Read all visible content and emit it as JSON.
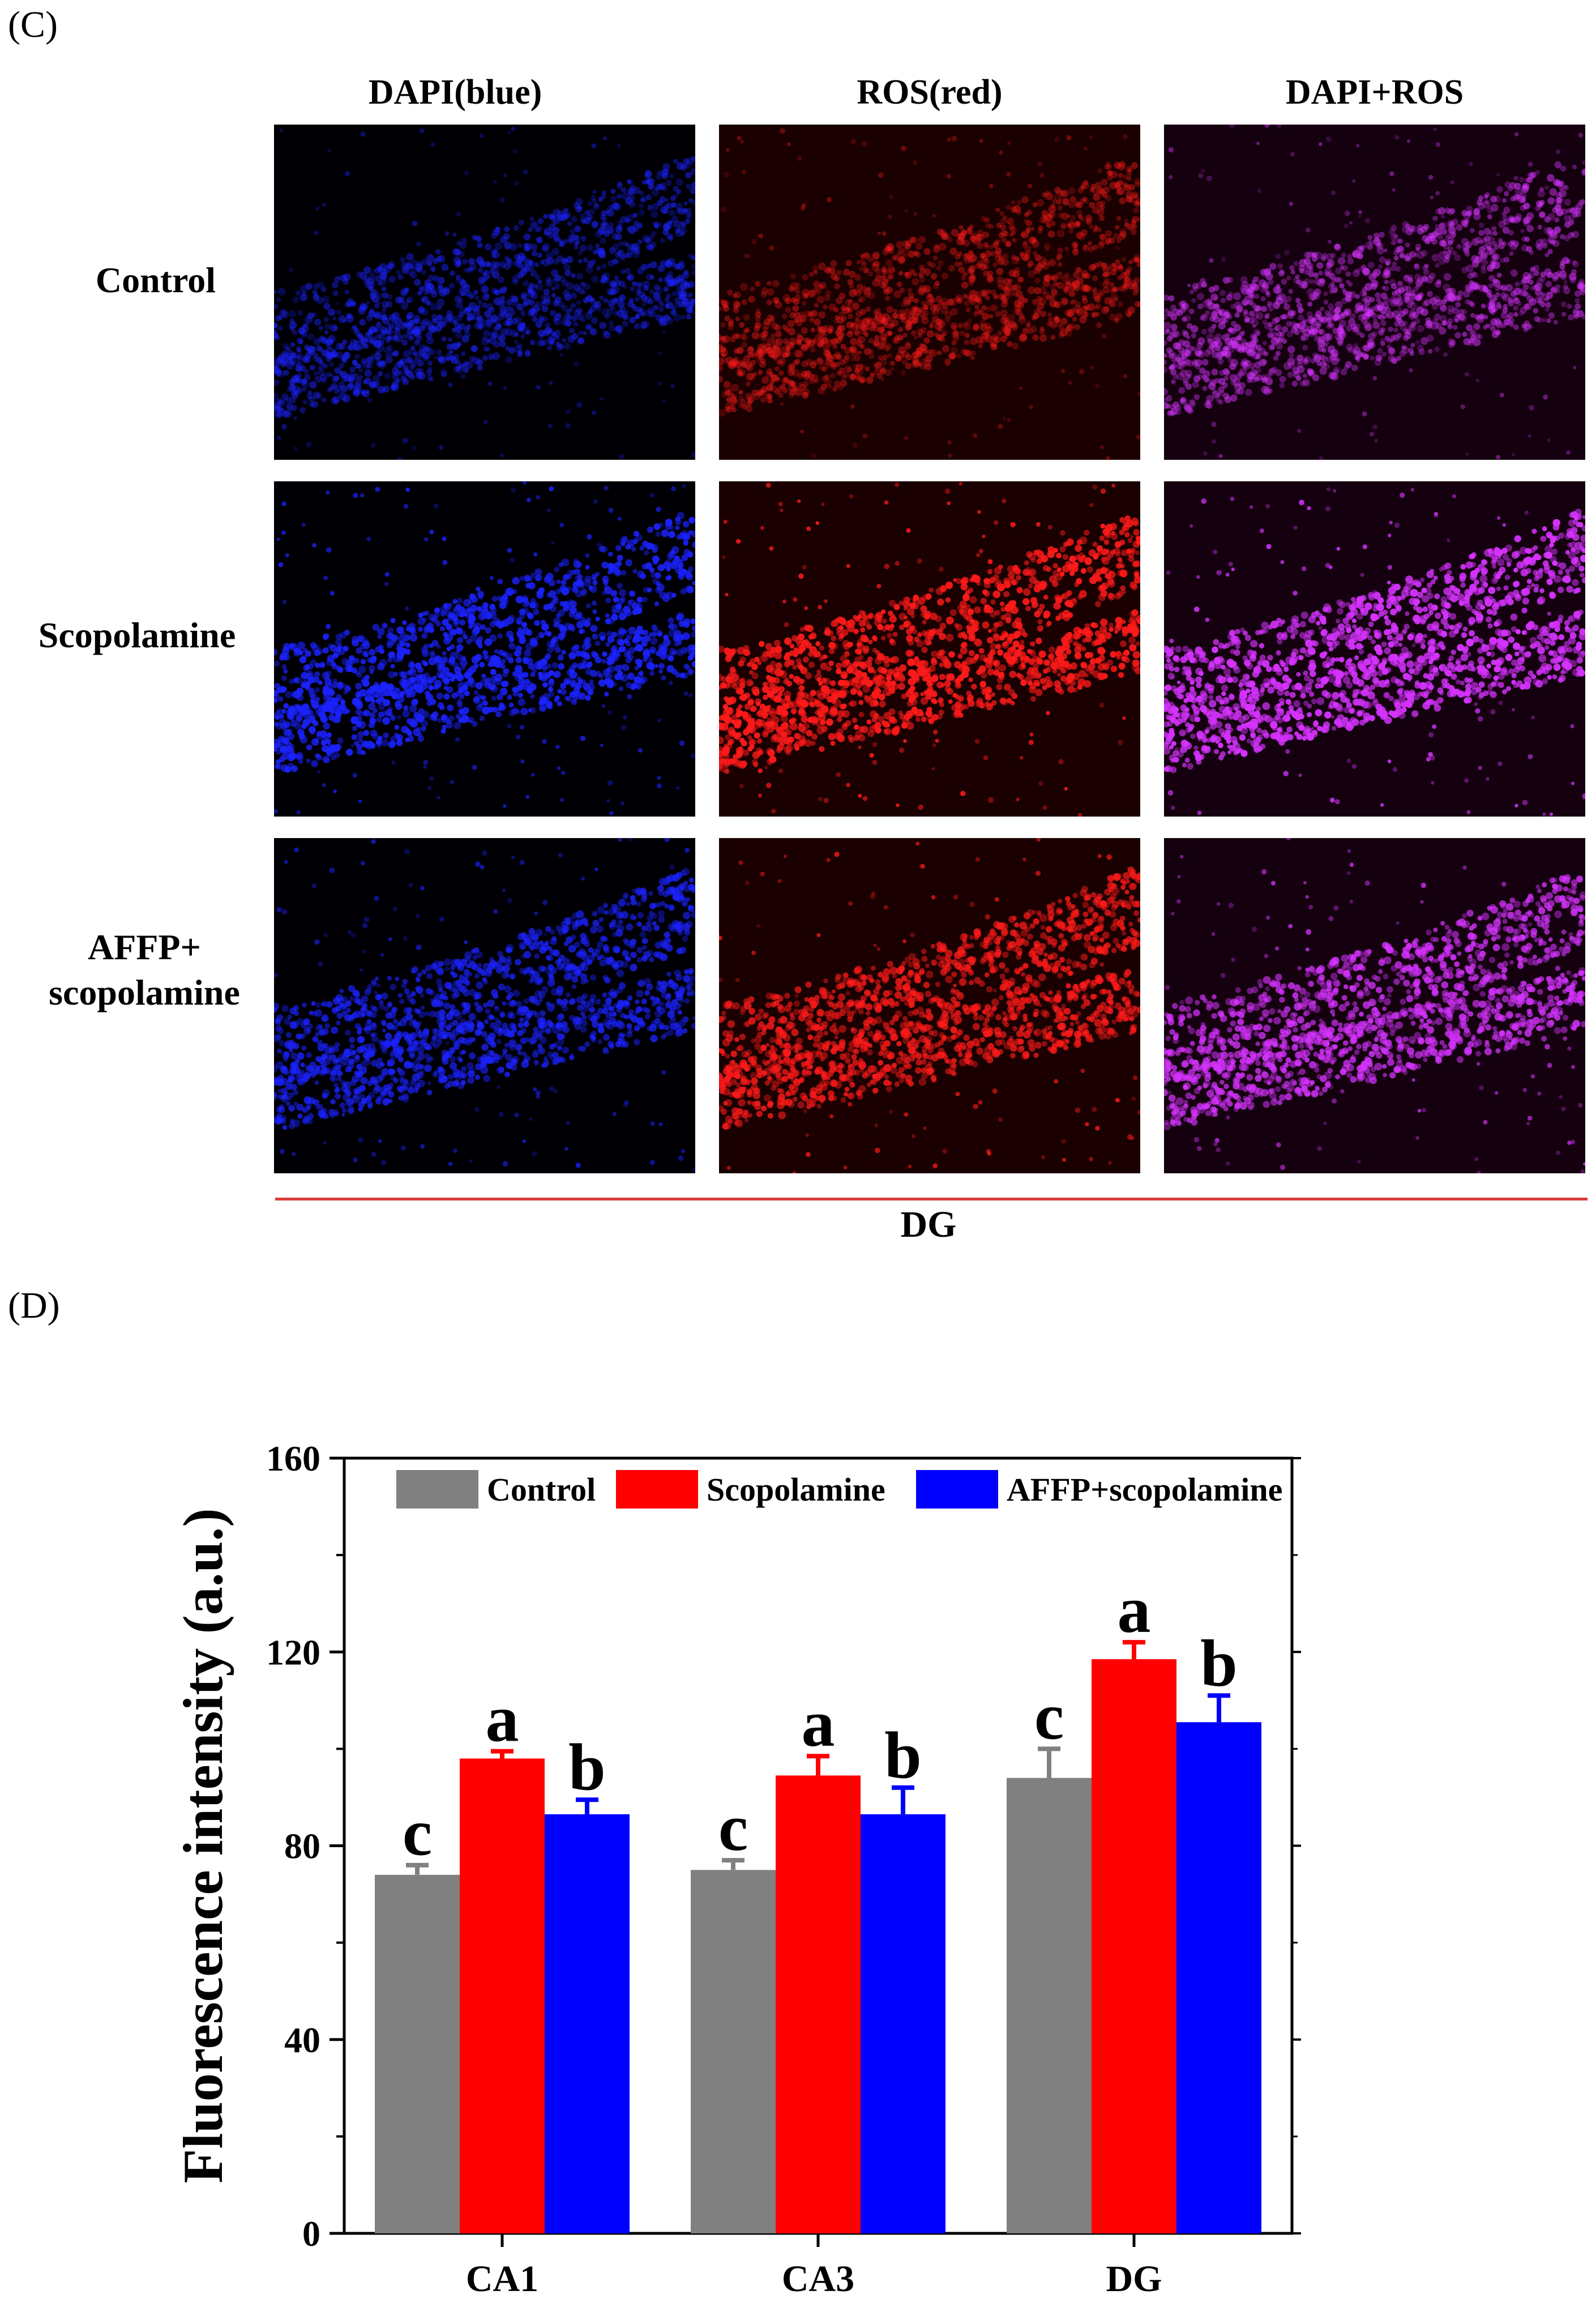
{
  "panel_c": {
    "label": "(C)",
    "columns": [
      "DAPI(blue)",
      "ROS(red)",
      "DAPI+ROS"
    ],
    "rows": [
      {
        "label_lines": [
          "Control"
        ]
      },
      {
        "label_lines": [
          "Scopolamine"
        ]
      },
      {
        "label_lines": [
          "AFFP+",
          "scopolamine"
        ]
      }
    ],
    "region_label": "DG",
    "stain_colors": {
      "dapi": "#1b22ff",
      "ros": "#ff1a1a",
      "merge": "#d633ff"
    },
    "brightness": [
      [
        0.55,
        0.45,
        0.55
      ],
      [
        0.95,
        1.0,
        1.0
      ],
      [
        0.8,
        0.85,
        0.85
      ]
    ]
  },
  "panel_d": {
    "label": "(D)"
  },
  "chart_data": {
    "type": "bar",
    "ylabel": "Fluorescence intensity (a.u.)",
    "xlabel": "",
    "ylim": [
      0,
      160
    ],
    "yticks": [
      0,
      40,
      80,
      120,
      160
    ],
    "categories": [
      "CA1",
      "CA3",
      "DG"
    ],
    "series": [
      {
        "name": "Control",
        "color": "#808080",
        "values": [
          74,
          75,
          94
        ],
        "errors": [
          2,
          2,
          6
        ],
        "letters": [
          "c",
          "c",
          "c"
        ]
      },
      {
        "name": "Scopolamine",
        "color": "#ff0000",
        "values": [
          98,
          94.5,
          118.5
        ],
        "errors": [
          1.5,
          4,
          3.5
        ],
        "letters": [
          "a",
          "a",
          "a"
        ]
      },
      {
        "name": "AFFP+scopolamine",
        "color": "#0000ff",
        "values": [
          86.5,
          86.5,
          105.5
        ],
        "errors": [
          3,
          5.5,
          5.5
        ],
        "letters": [
          "b",
          "b",
          "b"
        ]
      }
    ],
    "legend_position": "top"
  }
}
